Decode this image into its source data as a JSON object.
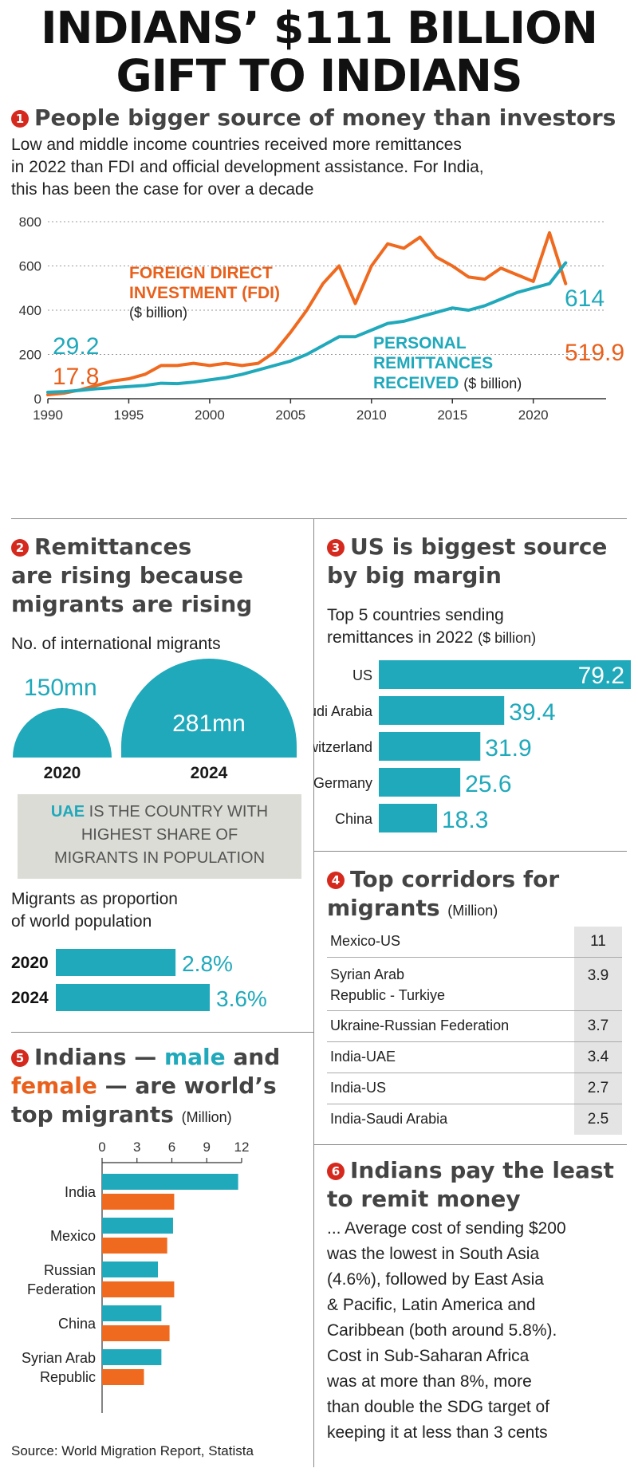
{
  "title_line1": "INDIANS’ $111 BILLION",
  "title_line2": "GIFT TO INDIANS",
  "colors": {
    "teal": "#20a9bb",
    "orange": "#ef6a1f",
    "red": "#d6291e",
    "grey_box": "#dcdcd6"
  },
  "section1": {
    "num": "1",
    "heading": "People bigger source of money than investors",
    "desc_lines": [
      "Low and middle income countries received more remittances",
      "in 2022 than FDI and official development assistance. For India,",
      "this has been the case for over a decade"
    ],
    "fdi_label_1": "FOREIGN DIRECT",
    "fdi_label_2": "INVESTMENT (FDI)",
    "fdi_unit": "($ billion)",
    "rem_label_1": "PERSONAL",
    "rem_label_2": "REMITTANCES",
    "rem_label_3": "RECEIVED",
    "rem_unit": "($ billion)",
    "start_rem": "29.2",
    "start_fdi": "17.8",
    "end_rem": "614",
    "end_fdi": "519.9"
  },
  "section2": {
    "num": "2",
    "heading_lines": [
      "Remittances",
      "are rising because",
      "migrants are rising"
    ],
    "sub": "No. of international migrants",
    "dome_2020_value": "150mn",
    "dome_2024_value": "281mn",
    "dome_2020_year": "2020",
    "dome_2024_year": "2024",
    "box_highlight": "UAE",
    "box_line1_rest": " IS THE COUNTRY WITH",
    "box_line2": "HIGHEST SHARE OF",
    "box_line3": "MIGRANTS IN POPULATION",
    "prop_lines": [
      "Migrants as proportion",
      "of world population"
    ]
  },
  "section3": {
    "num": "3",
    "heading_lines": [
      "US is biggest source",
      "by big margin"
    ],
    "sub_lines": [
      "Top 5 countries sending"
    ],
    "sub_line2": "remittances in 2022",
    "sub_unit": "($ billion)"
  },
  "section4": {
    "num": "4",
    "heading_line1": "Top corridors for",
    "heading_line2": "migrants",
    "heading_unit": "(Million)",
    "rows": [
      {
        "label": "Mexico-US",
        "value": "11"
      },
      {
        "label": "Syrian Arab",
        "label2": "Republic - Turkiye",
        "value": "3.9"
      },
      {
        "label": "Ukraine-Russian Federation",
        "value": "3.7"
      },
      {
        "label": "India-UAE",
        "value": "3.4"
      },
      {
        "label": "India-US",
        "value": "2.7"
      },
      {
        "label": "India-Saudi Arabia",
        "value": "2.5"
      }
    ]
  },
  "section5": {
    "num": "5",
    "h1a": "Indians — ",
    "h1b": "male",
    "h1c": " and",
    "h2a": "female",
    "h2b": " — are world’s",
    "h3": "top migrants",
    "unit": "(Million)"
  },
  "section6": {
    "num": "6",
    "heading_lines": [
      "Indians pay the least",
      "to remit money"
    ],
    "body_lines": [
      "... Average cost of sending $200",
      "was the lowest in South Asia",
      "(4.6%), followed by East Asia",
      "& Pacific, Latin America and",
      "Caribbean (both around 5.8%).",
      "Cost in Sub-Saharan Africa",
      "was at more than 8%, more",
      "than double the SDG target of",
      "keeping it at less than 3 cents"
    ]
  },
  "source": "Source: World Migration Report, Statista",
  "chart_data": [
    {
      "id": "fdi-vs-remittances",
      "type": "line",
      "title": "People bigger source of money than investors",
      "x": [
        1990,
        1991,
        1992,
        1993,
        1994,
        1995,
        1996,
        1997,
        1998,
        1999,
        2000,
        2001,
        2002,
        2003,
        2004,
        2005,
        2006,
        2007,
        2008,
        2009,
        2010,
        2011,
        2012,
        2013,
        2014,
        2015,
        2016,
        2017,
        2018,
        2019,
        2020,
        2021,
        2022
      ],
      "series": [
        {
          "name": "FOREIGN DIRECT INVESTMENT (FDI)",
          "color": "#ef6a1f",
          "values": [
            17.8,
            25,
            40,
            60,
            80,
            90,
            110,
            150,
            150,
            160,
            150,
            160,
            150,
            160,
            210,
            300,
            400,
            520,
            600,
            430,
            600,
            700,
            680,
            730,
            640,
            600,
            550,
            540,
            590,
            560,
            530,
            750,
            519.9
          ]
        },
        {
          "name": "PERSONAL REMITTANCES RECEIVED",
          "color": "#20a9bb",
          "values": [
            29.2,
            32,
            38,
            45,
            50,
            55,
            60,
            70,
            68,
            75,
            85,
            95,
            110,
            130,
            150,
            170,
            200,
            240,
            280,
            280,
            310,
            340,
            350,
            370,
            390,
            410,
            400,
            420,
            450,
            480,
            500,
            520,
            614
          ]
        }
      ],
      "xticks": [
        1990,
        1995,
        2000,
        2005,
        2010,
        2015,
        2020
      ],
      "yticks": [
        0,
        200,
        400,
        600,
        800
      ],
      "ylim": [
        0,
        800
      ]
    },
    {
      "id": "migrants-proportion",
      "type": "bar",
      "title": "Migrants as proportion of world population",
      "categories": [
        "2020",
        "2024"
      ],
      "values": [
        2.8,
        3.6
      ],
      "labels": [
        "2.8%",
        "3.6%"
      ],
      "color": "#20a9bb"
    },
    {
      "id": "top5-senders",
      "type": "bar",
      "title": "Top 5 countries sending remittances in 2022 ($ billion)",
      "categories": [
        "US",
        "Saudi Arabia",
        "Switzerland",
        "Germany",
        "China"
      ],
      "values": [
        79.2,
        39.4,
        31.9,
        25.6,
        18.3
      ],
      "labels": [
        "79.2",
        "39.4",
        "31.9",
        "25.6",
        "18.3"
      ],
      "color": "#20a9bb"
    },
    {
      "id": "top-migrants",
      "type": "bar",
      "title": "Indians — male and female — are world’s top migrants (Million)",
      "categories": [
        "India",
        "Mexico",
        "Russian Federation",
        "China",
        "Syrian Arab Republic"
      ],
      "category_lines": [
        [
          "India"
        ],
        [
          "Mexico"
        ],
        [
          "Russian",
          "Federation"
        ],
        [
          "China"
        ],
        [
          "Syrian Arab",
          "Republic"
        ]
      ],
      "series": [
        {
          "name": "male",
          "color": "#20a9bb",
          "values": [
            11.7,
            6.1,
            4.8,
            5.1,
            5.1
          ]
        },
        {
          "name": "female",
          "color": "#ef6a1f",
          "values": [
            6.2,
            5.6,
            6.2,
            5.8,
            3.6
          ]
        }
      ],
      "xticks": [
        0,
        3,
        6,
        9,
        12
      ],
      "xlim": [
        0,
        12
      ]
    }
  ]
}
